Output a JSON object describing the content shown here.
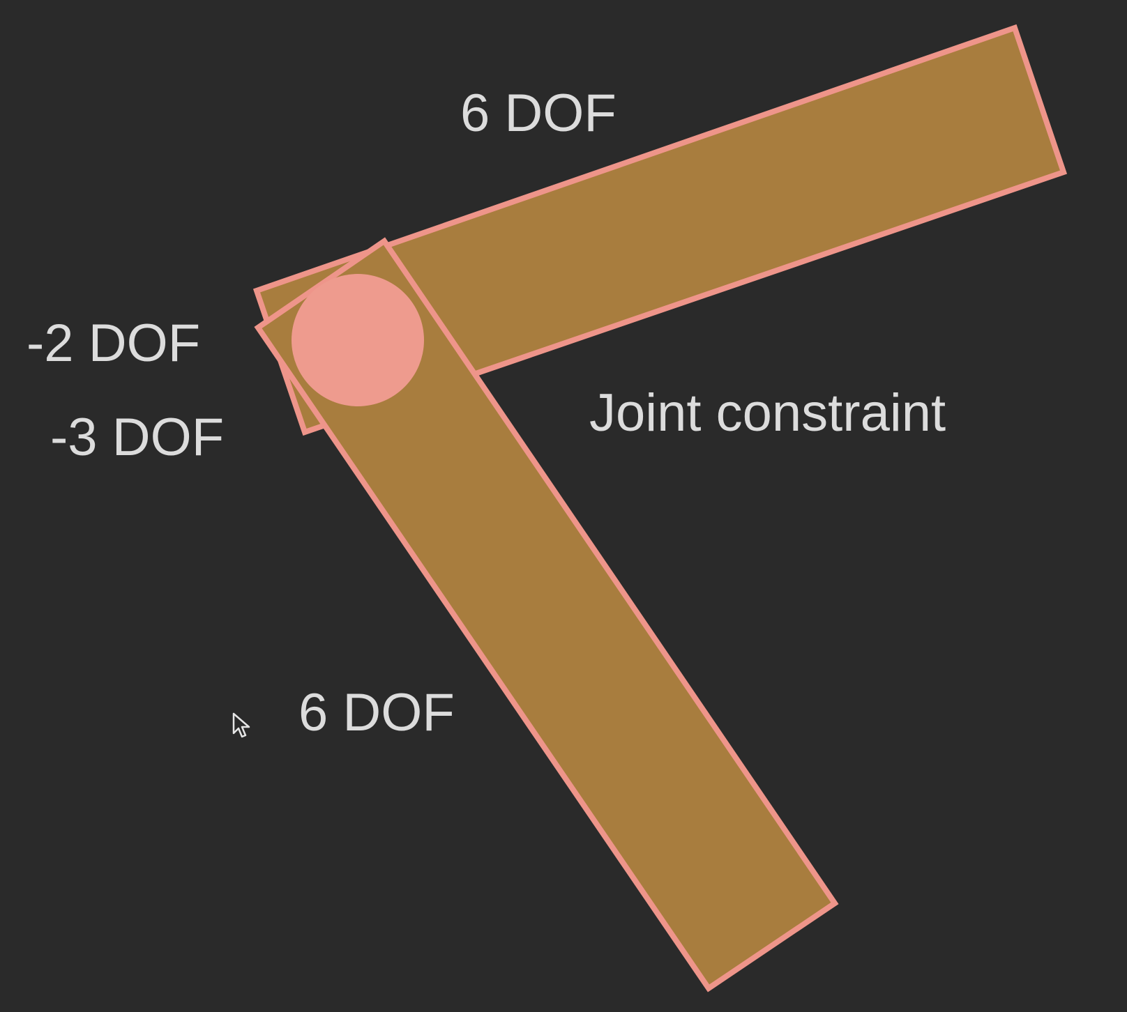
{
  "labels": {
    "upper_bar_dof": "6 DOF",
    "minus_two_dof": "-2 DOF",
    "minus_three_dof": "-3 DOF",
    "joint_constraint": "Joint constraint",
    "lower_bar_dof": "6 DOF"
  },
  "colors": {
    "background": "#2a2a2a",
    "bar_fill": "#a87d3e",
    "bar_outline": "#ee958a",
    "joint_fill": "#ee9b8e",
    "label_text": "#dcdcdc"
  },
  "icons": {
    "cursor": "mouse-pointer-icon"
  }
}
